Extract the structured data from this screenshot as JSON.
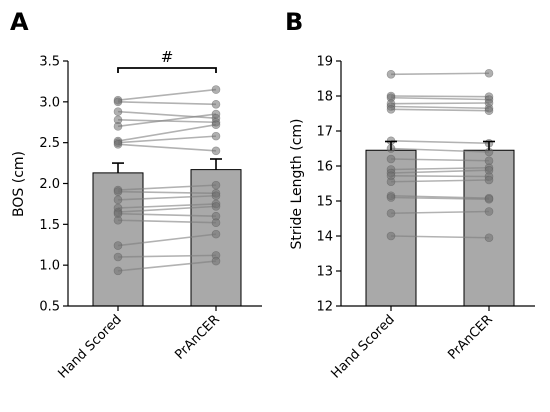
{
  "chart_data": [
    {
      "type": "bar",
      "panel": "A",
      "ylabel": "BOS (cm)",
      "categories": [
        "Hand Scored",
        "PrAnCER"
      ],
      "ylim": [
        0.5,
        3.5
      ],
      "yticks": [
        "0.5",
        "1.0",
        "1.5",
        "2.0",
        "2.5",
        "3.0",
        "3.5"
      ],
      "bar_values": [
        2.13,
        2.17
      ],
      "error": [
        0.12,
        0.13
      ],
      "significance": "#",
      "pairs": [
        [
          3.02,
          3.15
        ],
        [
          3.0,
          2.97
        ],
        [
          2.88,
          2.8
        ],
        [
          2.78,
          2.75
        ],
        [
          2.7,
          2.85
        ],
        [
          2.52,
          2.72
        ],
        [
          2.5,
          2.58
        ],
        [
          2.48,
          2.4
        ],
        [
          1.92,
          1.98
        ],
        [
          1.9,
          1.88
        ],
        [
          1.8,
          1.85
        ],
        [
          1.7,
          1.75
        ],
        [
          1.65,
          1.72
        ],
        [
          1.63,
          1.6
        ],
        [
          1.55,
          1.52
        ],
        [
          1.24,
          1.38
        ],
        [
          1.1,
          1.12
        ],
        [
          0.93,
          1.05
        ]
      ]
    },
    {
      "type": "bar",
      "panel": "B",
      "ylabel": "Stride Length (cm)",
      "categories": [
        "Hand Scored",
        "PrAnCER"
      ],
      "ylim": [
        12,
        19
      ],
      "yticks": [
        "12",
        "13",
        "14",
        "15",
        "16",
        "17",
        "18",
        "19"
      ],
      "bar_values": [
        16.45,
        16.45
      ],
      "error": [
        0.25,
        0.25
      ],
      "pairs": [
        [
          18.62,
          18.65
        ],
        [
          18.0,
          17.98
        ],
        [
          17.95,
          17.9
        ],
        [
          17.78,
          17.8
        ],
        [
          17.7,
          17.65
        ],
        [
          17.62,
          17.58
        ],
        [
          16.72,
          16.65
        ],
        [
          16.5,
          16.4
        ],
        [
          16.2,
          16.15
        ],
        [
          15.9,
          15.95
        ],
        [
          15.8,
          15.88
        ],
        [
          15.72,
          15.7
        ],
        [
          15.55,
          15.6
        ],
        [
          15.15,
          15.08
        ],
        [
          15.1,
          15.05
        ],
        [
          14.65,
          14.7
        ],
        [
          14.0,
          13.95
        ]
      ]
    }
  ]
}
